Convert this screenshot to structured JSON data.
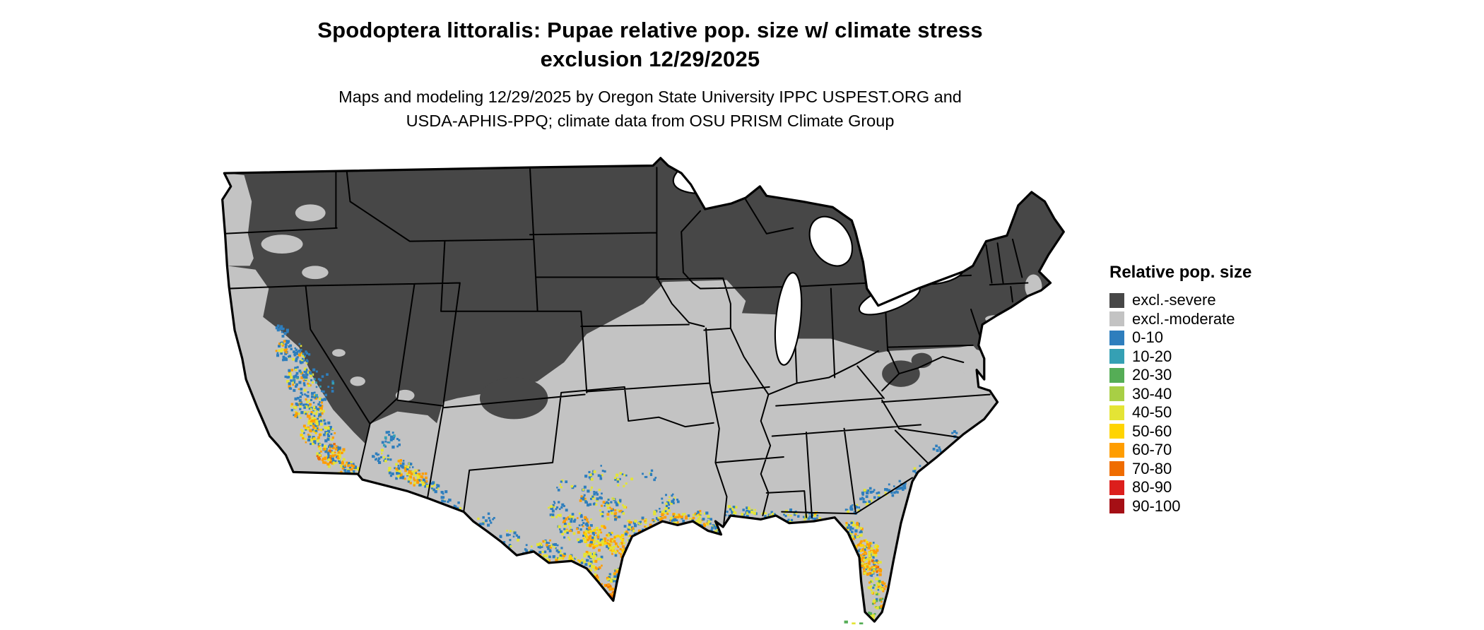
{
  "title": {
    "line1": "Spodoptera littoralis: Pupae relative pop. size w/ climate stress",
    "line2": "exclusion 12/29/2025"
  },
  "subtitle": {
    "line1": "Maps and modeling 12/29/2025 by Oregon State University IPPC USPEST.ORG and",
    "line2": "USDA-APHIS-PPQ; climate data from OSU PRISM Climate Group"
  },
  "legend": {
    "title": "Relative pop. size",
    "items": [
      {
        "label": "excl.-severe",
        "color": "#474747"
      },
      {
        "label": "excl.-moderate",
        "color": "#c3c3c3"
      },
      {
        "label": "0-10",
        "color": "#2e7ebd"
      },
      {
        "label": "10-20",
        "color": "#35a0b4"
      },
      {
        "label": "20-30",
        "color": "#55ad56"
      },
      {
        "label": "30-40",
        "color": "#a8cf45"
      },
      {
        "label": "40-50",
        "color": "#e4e435"
      },
      {
        "label": "50-60",
        "color": "#ffd400"
      },
      {
        "label": "60-70",
        "color": "#ff9d00"
      },
      {
        "label": "70-80",
        "color": "#ef6c00"
      },
      {
        "label": "80-90",
        "color": "#dc1f1c"
      },
      {
        "label": "90-100",
        "color": "#a50f15"
      }
    ]
  },
  "map": {
    "region": "Continental United States",
    "colors": {
      "excluded_severe": "#474747",
      "excluded_moderate": "#c3c3c3",
      "water": "#ffffff",
      "border": "#000000",
      "background": "#ffffff"
    }
  }
}
